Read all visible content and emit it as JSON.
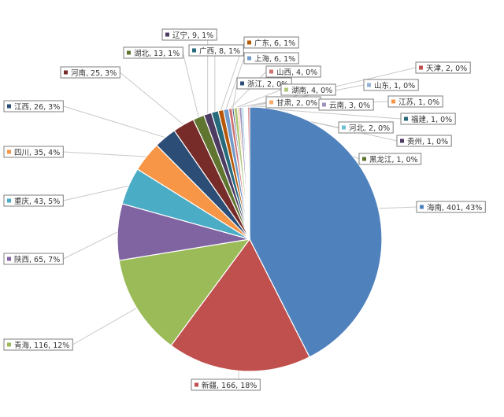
{
  "chart_data": {
    "type": "pie",
    "title": "",
    "legend": "none",
    "slices": [
      {
        "label": "海南",
        "value": 401,
        "percent": "43%",
        "color": "#4F81BD"
      },
      {
        "label": "新疆",
        "value": 166,
        "percent": "18%",
        "color": "#C0504D"
      },
      {
        "label": "青海",
        "value": 116,
        "percent": "12%",
        "color": "#9BBB59"
      },
      {
        "label": "陕西",
        "value": 65,
        "percent": "7%",
        "color": "#8064A2"
      },
      {
        "label": "重庆",
        "value": 43,
        "percent": "5%",
        "color": "#4BACC6"
      },
      {
        "label": "四川",
        "value": 35,
        "percent": "4%",
        "color": "#F79646"
      },
      {
        "label": "江西",
        "value": 26,
        "percent": "3%",
        "color": "#2C4D75"
      },
      {
        "label": "河南",
        "value": 25,
        "percent": "3%",
        "color": "#772C2A"
      },
      {
        "label": "湖北",
        "value": 13,
        "percent": "1%",
        "color": "#5F7530"
      },
      {
        "label": "辽宁",
        "value": 9,
        "percent": "1%",
        "color": "#4D3B62"
      },
      {
        "label": "广西",
        "value": 8,
        "percent": "1%",
        "color": "#276A7C"
      },
      {
        "label": "广东",
        "value": 6,
        "percent": "1%",
        "color": "#B65708"
      },
      {
        "label": "上海",
        "value": 6,
        "percent": "1%",
        "color": "#729ACA"
      },
      {
        "label": "山西",
        "value": 4,
        "percent": "0%",
        "color": "#CD7371"
      },
      {
        "label": "浙江",
        "value": 2,
        "percent": "0%",
        "color": "#2C4D75"
      },
      {
        "label": "湖南",
        "value": 4,
        "percent": "0%",
        "color": "#AFC97A"
      },
      {
        "label": "甘肃",
        "value": 2,
        "percent": "0%",
        "color": "#F9AB6B"
      },
      {
        "label": "云南",
        "value": 3,
        "percent": "0%",
        "color": "#A092BC"
      },
      {
        "label": "河北",
        "value": 2,
        "percent": "0%",
        "color": "#6BC0D8"
      },
      {
        "label": "贵州",
        "value": 1,
        "percent": "0%",
        "color": "#4D3B62"
      },
      {
        "label": "黑龙江",
        "value": 1,
        "percent": "0%",
        "color": "#5F7530"
      },
      {
        "label": "福建",
        "value": 1,
        "percent": "0%",
        "color": "#276A7C"
      },
      {
        "label": "江苏",
        "value": 1,
        "percent": "0%",
        "color": "#F79646"
      },
      {
        "label": "山东",
        "value": 1,
        "percent": "0%",
        "color": "#95B3D7"
      },
      {
        "label": "天津",
        "value": 2,
        "percent": "0%",
        "color": "#C0504D"
      }
    ]
  }
}
